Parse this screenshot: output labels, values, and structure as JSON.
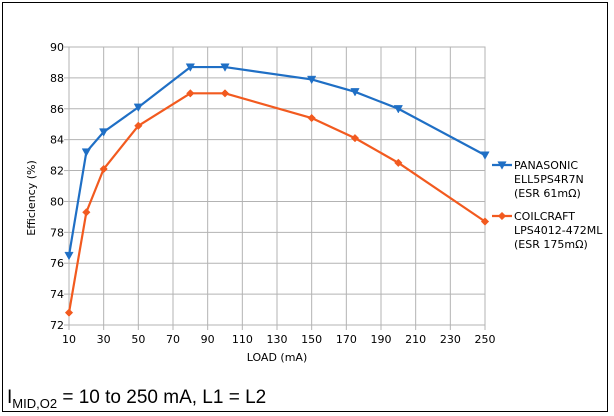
{
  "chart_data": {
    "type": "line",
    "x": [
      10,
      20,
      30,
      50,
      80,
      100,
      150,
      175,
      200,
      250
    ],
    "xticks": [
      10,
      30,
      50,
      70,
      90,
      110,
      130,
      150,
      170,
      190,
      210,
      230,
      250
    ],
    "xlim": [
      10,
      250
    ],
    "ylim": [
      72,
      90
    ],
    "yticks": [
      72,
      74,
      76,
      78,
      80,
      82,
      84,
      86,
      88,
      90
    ],
    "xlabel": "LOAD (mA)",
    "ylabel": "Efficiency (%)",
    "grid": true,
    "legend_position": "right",
    "series": [
      {
        "name_lines": [
          "PANASONIC",
          "ELL5PS4R7N",
          "(ESR 61mΩ)"
        ],
        "color": "#1f6fc5",
        "marker": "triangle-down",
        "values": [
          76.5,
          83.2,
          84.5,
          86.1,
          88.7,
          88.7,
          87.9,
          87.1,
          86.0,
          83.0
        ]
      },
      {
        "name_lines": [
          "COILCRAFT",
          "LPS4012-472ML",
          "(ESR 175mΩ)"
        ],
        "color": "#f25a1f",
        "marker": "diamond",
        "values": [
          72.8,
          79.3,
          82.1,
          84.9,
          87.0,
          87.0,
          85.4,
          84.1,
          82.5,
          78.7
        ]
      }
    ]
  },
  "caption": {
    "symbol": "I",
    "subscript": "MID,O2",
    "text": " = 10 to 250 mA, L1 = L2"
  }
}
